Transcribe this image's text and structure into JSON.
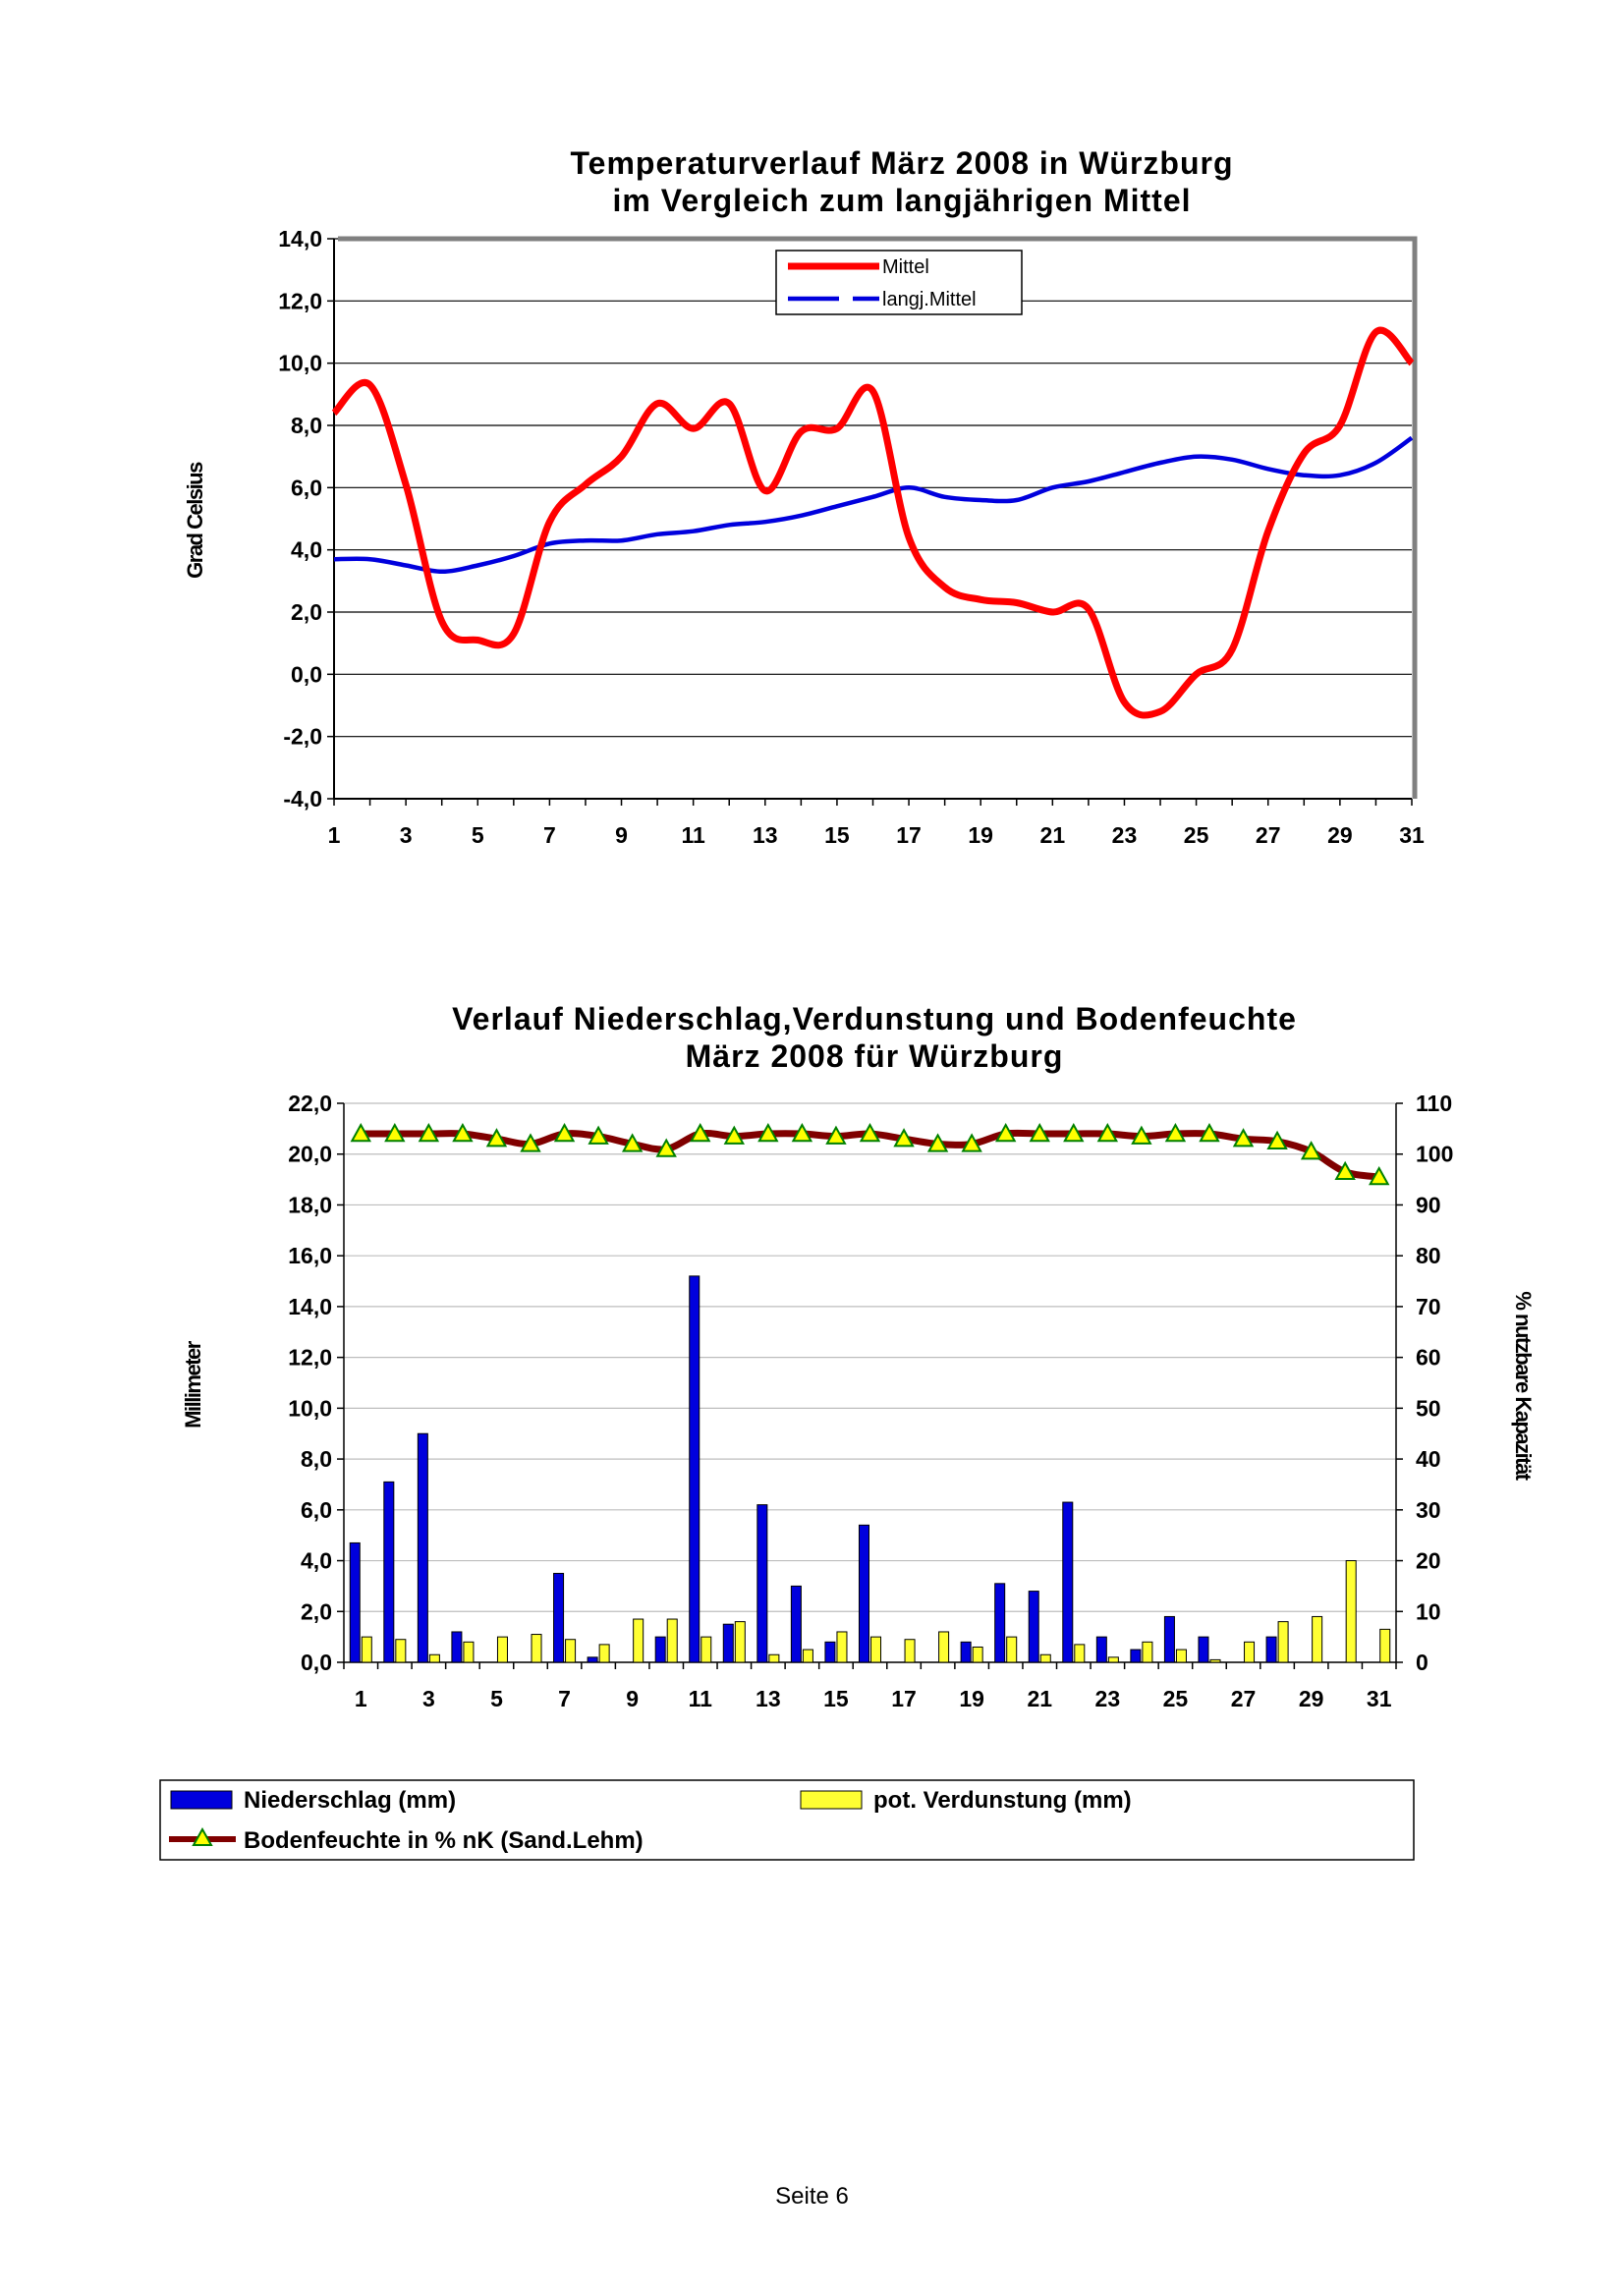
{
  "page": {
    "footer": "Seite 6"
  },
  "colors": {
    "mittel": "#ff0000",
    "langj": "#0000dd",
    "niederschlag": "#0000dd",
    "verdunstung": "#ffff33",
    "bodenfeuchte_line": "#800000",
    "bodenfeuchte_marker": "#ffff00",
    "bodenfeuchte_marker_edge": "#008000"
  },
  "chart_data": [
    {
      "type": "line",
      "title_lines": [
        "Temperaturverlauf März 2008 in Würzburg",
        "im Vergleich zum langjährigen Mittel"
      ],
      "ylabel": "Grad Celsius",
      "xlabel": "",
      "ylim": [
        -4,
        14
      ],
      "yticks": [
        "14,0",
        "12,0",
        "10,0",
        "8,0",
        "6,0",
        "4,0",
        "2,0",
        "0,0",
        "-2,0",
        "-4,0"
      ],
      "xticks": [
        "1",
        "3",
        "5",
        "7",
        "9",
        "11",
        "13",
        "15",
        "17",
        "19",
        "21",
        "23",
        "25",
        "27",
        "29",
        "31"
      ],
      "grid": true,
      "legend": "top-center",
      "x": [
        1,
        2,
        3,
        4,
        5,
        6,
        7,
        8,
        9,
        10,
        11,
        12,
        13,
        14,
        15,
        16,
        17,
        18,
        19,
        20,
        21,
        22,
        23,
        24,
        25,
        26,
        27,
        28,
        29,
        30,
        31
      ],
      "series": [
        {
          "name": "Mittel",
          "style": "solid",
          "values": [
            8.4,
            9.3,
            6.1,
            1.7,
            1.1,
            1.3,
            4.9,
            6.1,
            7.0,
            8.7,
            7.9,
            8.7,
            5.9,
            7.8,
            7.9,
            9.1,
            4.4,
            2.8,
            2.4,
            2.3,
            2.0,
            2.1,
            -0.9,
            -1.2,
            0.0,
            0.8,
            4.6,
            7.1,
            8.0,
            11.0,
            10.0
          ]
        },
        {
          "name": "langj.Mittel",
          "style": "dashed",
          "values": [
            3.7,
            3.7,
            3.5,
            3.3,
            3.5,
            3.8,
            4.2,
            4.3,
            4.3,
            4.5,
            4.6,
            4.8,
            4.9,
            5.1,
            5.4,
            5.7,
            6.0,
            5.7,
            5.6,
            5.6,
            6.0,
            6.2,
            6.5,
            6.8,
            7.0,
            6.9,
            6.6,
            6.4,
            6.4,
            6.8,
            7.6
          ]
        }
      ]
    },
    {
      "type": "bar",
      "title_lines": [
        "Verlauf Niederschlag,Verdunstung und Bodenfeuchte",
        "März 2008 für Würzburg"
      ],
      "ylabel": "Millimeter",
      "y2label": "% nutzbare Kapazität",
      "ylim": [
        0,
        22
      ],
      "y2lim": [
        0,
        110
      ],
      "yticks": [
        "22,0",
        "20,0",
        "18,0",
        "16,0",
        "14,0",
        "12,0",
        "10,0",
        "8,0",
        "6,0",
        "4,0",
        "2,0",
        "0,0"
      ],
      "y2ticks": [
        "110",
        "100",
        "90",
        "80",
        "70",
        "60",
        "50",
        "40",
        "30",
        "20",
        "10",
        "0"
      ],
      "xticks": [
        "1",
        "3",
        "5",
        "7",
        "9",
        "11",
        "13",
        "15",
        "17",
        "19",
        "21",
        "23",
        "25",
        "27",
        "29",
        "31"
      ],
      "grid": true,
      "legend": "bottom",
      "categories": [
        1,
        2,
        3,
        4,
        5,
        6,
        7,
        8,
        9,
        10,
        11,
        12,
        13,
        14,
        15,
        16,
        17,
        18,
        19,
        20,
        21,
        22,
        23,
        24,
        25,
        26,
        27,
        28,
        29,
        30,
        31
      ],
      "series": [
        {
          "name": "Niederschlag (mm)",
          "kind": "bar",
          "axis": "left",
          "values": [
            4.7,
            7.1,
            9.0,
            1.2,
            0.0,
            0.0,
            3.5,
            0.2,
            0.0,
            1.0,
            15.2,
            1.5,
            6.2,
            3.0,
            0.8,
            5.4,
            0.0,
            0.0,
            0.8,
            3.1,
            2.8,
            6.3,
            1.0,
            0.5,
            1.8,
            1.0,
            0.0,
            1.0,
            0.0,
            0.0,
            0.0
          ]
        },
        {
          "name": "pot. Verdunstung (mm)",
          "kind": "bar",
          "axis": "left",
          "values": [
            1.0,
            0.9,
            0.3,
            0.8,
            1.0,
            1.1,
            0.9,
            0.7,
            1.7,
            1.7,
            1.0,
            1.6,
            0.3,
            0.5,
            1.2,
            1.0,
            0.9,
            1.2,
            0.6,
            1.0,
            0.3,
            0.7,
            0.2,
            0.8,
            0.5,
            0.1,
            0.8,
            1.6,
            1.8,
            4.0,
            1.3
          ]
        },
        {
          "name": "Bodenfeuchte in % nK (Sand.Lehm)",
          "kind": "line",
          "axis": "right",
          "values": [
            104,
            104,
            104,
            104,
            103,
            102,
            104,
            103.5,
            102,
            101,
            104,
            103.5,
            104,
            104,
            103.5,
            104,
            103,
            102,
            102,
            104,
            104,
            104,
            104,
            103.5,
            104,
            104,
            103,
            102.5,
            100.5,
            96.5,
            95.5
          ]
        }
      ]
    }
  ]
}
